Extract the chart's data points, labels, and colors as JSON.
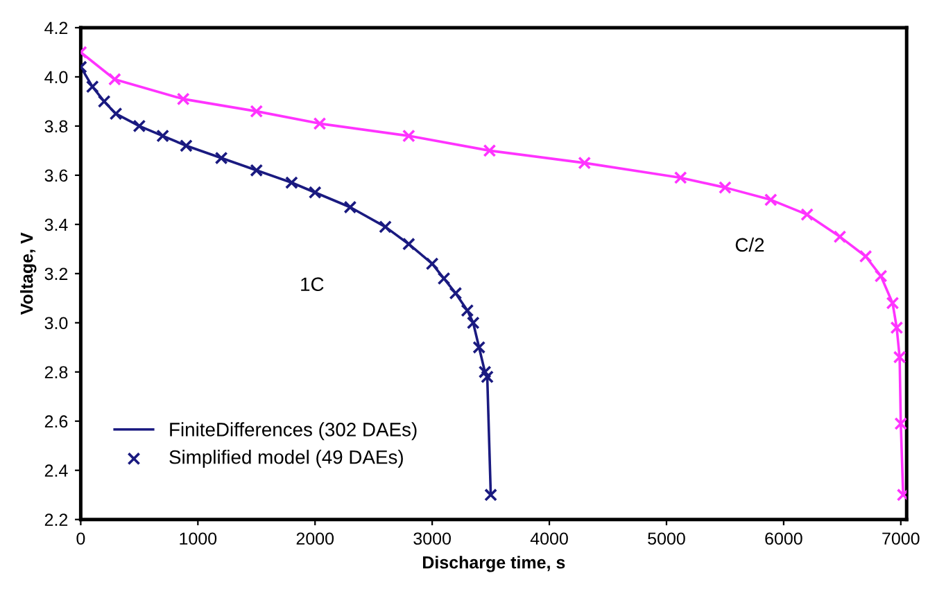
{
  "chart_data": {
    "type": "line",
    "xlabel": "Discharge time, s",
    "ylabel": "Voltage, V",
    "xlim": [
      0,
      7050
    ],
    "xticks": [
      0,
      1000,
      2000,
      3000,
      4000,
      5000,
      6000,
      7000
    ],
    "ylim": [
      2.2,
      4.2
    ],
    "yticks": [
      {
        "value": 2.2,
        "label": "2.2"
      },
      {
        "value": 2.4,
        "label": "2.4"
      },
      {
        "value": 2.6,
        "label": "2.6"
      },
      {
        "value": 2.8,
        "label": "2.8"
      },
      {
        "value": 3.0,
        "label": "3.0"
      },
      {
        "value": 3.2,
        "label": "3.2"
      },
      {
        "value": 3.4,
        "label": "3.4"
      },
      {
        "value": 3.6,
        "label": "3.6"
      },
      {
        "value": 3.8,
        "label": "3.8"
      },
      {
        "value": 4.0,
        "label": "4.0"
      },
      {
        "value": 4.2,
        "label": "4.2"
      }
    ],
    "grid": false,
    "legend": "bottom left",
    "annotations": [
      "1C",
      "C/2"
    ],
    "series": [
      {
        "name": "FiniteDifferences (302 DAEs)",
        "marker": "none",
        "color": "#1a1a80",
        "x": [
          0,
          100,
          200,
          300,
          500,
          700,
          900,
          1200,
          1500,
          1800,
          2000,
          2300,
          2600,
          2800,
          3000,
          3100,
          3200,
          3300,
          3350,
          3400,
          3450,
          3470,
          3500
        ],
        "values": [
          4.04,
          3.96,
          3.9,
          3.85,
          3.8,
          3.76,
          3.72,
          3.67,
          3.62,
          3.57,
          3.53,
          3.47,
          3.39,
          3.32,
          3.24,
          3.18,
          3.12,
          3.05,
          3.0,
          2.9,
          2.8,
          2.78,
          2.3
        ]
      },
      {
        "name": "Simplified model (49 DAEs)",
        "type": "scatter",
        "marker": "cross",
        "color": "#1a1a80",
        "x": [
          0,
          100,
          200,
          300,
          500,
          700,
          900,
          1200,
          1500,
          1800,
          2000,
          2300,
          2600,
          2800,
          3000,
          3100,
          3200,
          3300,
          3350,
          3400,
          3450,
          3470,
          3500
        ],
        "values": [
          4.04,
          3.96,
          3.9,
          3.85,
          3.8,
          3.76,
          3.72,
          3.67,
          3.62,
          3.57,
          3.53,
          3.47,
          3.39,
          3.32,
          3.24,
          3.18,
          3.12,
          3.05,
          3.0,
          2.9,
          2.8,
          2.78,
          2.3
        ]
      },
      {
        "marker": "none",
        "color": "#ff33ff",
        "x": [
          0,
          290,
          875,
          1500,
          2040,
          2800,
          3490,
          4300,
          5120,
          5500,
          5890,
          6200,
          6480,
          6700,
          6830,
          6930,
          6965,
          6990,
          7000,
          7020
        ],
        "values": [
          4.1,
          3.99,
          3.91,
          3.86,
          3.81,
          3.76,
          3.7,
          3.65,
          3.59,
          3.55,
          3.5,
          3.44,
          3.35,
          3.27,
          3.19,
          3.08,
          2.98,
          2.86,
          2.59,
          2.3
        ]
      },
      {
        "type": "scatter",
        "marker": "cross",
        "color": "#ff33ff",
        "x": [
          0,
          290,
          875,
          1500,
          2040,
          2800,
          3490,
          4300,
          5120,
          5500,
          5890,
          6200,
          6480,
          6700,
          6830,
          6930,
          6965,
          6990,
          7000,
          7020
        ],
        "values": [
          4.1,
          3.99,
          3.91,
          3.86,
          3.81,
          3.76,
          3.7,
          3.65,
          3.59,
          3.55,
          3.5,
          3.44,
          3.35,
          3.27,
          3.19,
          3.08,
          2.98,
          2.86,
          2.59,
          2.3
        ]
      }
    ]
  }
}
